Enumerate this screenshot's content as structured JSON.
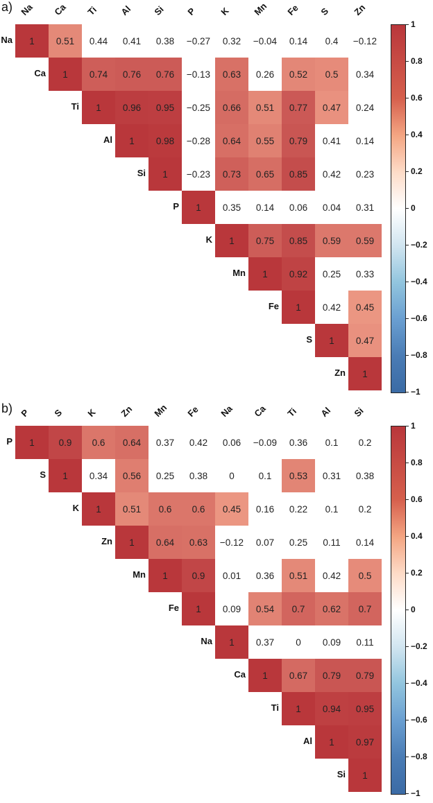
{
  "chart_data": [
    {
      "type": "heatmap",
      "title": "a)",
      "subtype": "upper-triangular correlation matrix",
      "variables": [
        "Na",
        "Ca",
        "Ti",
        "Al",
        "Si",
        "P",
        "K",
        "Mn",
        "Fe",
        "S",
        "Zn"
      ],
      "matrix": [
        [
          1,
          0.51,
          0.44,
          0.41,
          0.38,
          -0.27,
          0.32,
          -0.04,
          0.14,
          0.4,
          -0.12
        ],
        [
          null,
          1,
          0.74,
          0.76,
          0.76,
          -0.13,
          0.63,
          0.26,
          0.52,
          0.5,
          0.34
        ],
        [
          null,
          null,
          1,
          0.96,
          0.95,
          -0.25,
          0.66,
          0.51,
          0.77,
          0.47,
          0.24
        ],
        [
          null,
          null,
          null,
          1,
          0.98,
          -0.28,
          0.64,
          0.55,
          0.79,
          0.41,
          0.14
        ],
        [
          null,
          null,
          null,
          null,
          1,
          -0.23,
          0.73,
          0.65,
          0.85,
          0.42,
          0.23
        ],
        [
          null,
          null,
          null,
          null,
          null,
          1,
          0.35,
          0.14,
          0.06,
          0.04,
          0.31
        ],
        [
          null,
          null,
          null,
          null,
          null,
          null,
          1,
          0.75,
          0.85,
          0.59,
          0.59
        ],
        [
          null,
          null,
          null,
          null,
          null,
          null,
          null,
          1,
          0.92,
          0.25,
          0.33
        ],
        [
          null,
          null,
          null,
          null,
          null,
          null,
          null,
          null,
          1,
          0.42,
          0.45
        ],
        [
          null,
          null,
          null,
          null,
          null,
          null,
          null,
          null,
          null,
          1,
          0.47
        ],
        [
          null,
          null,
          null,
          null,
          null,
          null,
          null,
          null,
          null,
          null,
          1
        ]
      ],
      "colored_mask": [
        [
          1,
          1,
          0,
          0,
          0,
          0,
          0,
          0,
          0,
          0,
          0
        ],
        [
          0,
          1,
          1,
          1,
          1,
          0,
          1,
          0,
          1,
          1,
          0
        ],
        [
          0,
          0,
          1,
          1,
          1,
          0,
          1,
          1,
          1,
          1,
          0
        ],
        [
          0,
          0,
          0,
          1,
          1,
          0,
          1,
          1,
          1,
          0,
          0
        ],
        [
          0,
          0,
          0,
          0,
          1,
          0,
          1,
          1,
          1,
          0,
          0
        ],
        [
          0,
          0,
          0,
          0,
          0,
          1,
          0,
          0,
          0,
          0,
          0
        ],
        [
          0,
          0,
          0,
          0,
          0,
          0,
          1,
          1,
          1,
          1,
          1
        ],
        [
          0,
          0,
          0,
          0,
          0,
          0,
          0,
          1,
          1,
          0,
          0
        ],
        [
          0,
          0,
          0,
          0,
          0,
          0,
          0,
          0,
          1,
          0,
          1
        ],
        [
          0,
          0,
          0,
          0,
          0,
          0,
          0,
          0,
          0,
          1,
          1
        ],
        [
          0,
          0,
          0,
          0,
          0,
          0,
          0,
          0,
          0,
          0,
          1
        ]
      ],
      "colorbar": {
        "min": -1,
        "max": 1,
        "ticks": [
          "1",
          "0.8",
          "0.6",
          "0.4",
          "0.2",
          "0",
          "−0.2",
          "−0.4",
          "−0.6",
          "−0.8",
          "−1"
        ],
        "low_color": "#3b6ba5",
        "mid_color": "#ffffff",
        "high_color": "#b9373b"
      }
    },
    {
      "type": "heatmap",
      "title": "b)",
      "subtype": "upper-triangular correlation matrix",
      "variables": [
        "P",
        "S",
        "K",
        "Zn",
        "Mn",
        "Fe",
        "Na",
        "Ca",
        "Ti",
        "Al",
        "Si"
      ],
      "matrix": [
        [
          1,
          0.9,
          0.6,
          0.64,
          0.37,
          0.42,
          0.06,
          -0.09,
          0.36,
          0.1,
          0.2
        ],
        [
          null,
          1,
          0.34,
          0.56,
          0.25,
          0.38,
          0,
          0.1,
          0.53,
          0.31,
          0.38
        ],
        [
          null,
          null,
          1,
          0.51,
          0.6,
          0.6,
          0.45,
          0.16,
          0.22,
          0.1,
          0.2
        ],
        [
          null,
          null,
          null,
          1,
          0.64,
          0.63,
          -0.12,
          0.07,
          0.25,
          0.11,
          0.14
        ],
        [
          null,
          null,
          null,
          null,
          1,
          0.9,
          0.01,
          0.36,
          0.51,
          0.42,
          0.5
        ],
        [
          null,
          null,
          null,
          null,
          null,
          1,
          0.09,
          0.54,
          0.7,
          0.62,
          0.7
        ],
        [
          null,
          null,
          null,
          null,
          null,
          null,
          1,
          0.37,
          0,
          0.09,
          0.11
        ],
        [
          null,
          null,
          null,
          null,
          null,
          null,
          null,
          1,
          0.67,
          0.79,
          0.79
        ],
        [
          null,
          null,
          null,
          null,
          null,
          null,
          null,
          null,
          1,
          0.94,
          0.95
        ],
        [
          null,
          null,
          null,
          null,
          null,
          null,
          null,
          null,
          null,
          1,
          0.97
        ],
        [
          null,
          null,
          null,
          null,
          null,
          null,
          null,
          null,
          null,
          null,
          1
        ]
      ],
      "colored_mask": [
        [
          1,
          1,
          1,
          1,
          0,
          0,
          0,
          0,
          0,
          0,
          0
        ],
        [
          0,
          1,
          0,
          1,
          0,
          0,
          0,
          0,
          1,
          0,
          0
        ],
        [
          0,
          0,
          1,
          1,
          1,
          1,
          1,
          0,
          0,
          0,
          0
        ],
        [
          0,
          0,
          0,
          1,
          1,
          1,
          0,
          0,
          0,
          0,
          0
        ],
        [
          0,
          0,
          0,
          0,
          1,
          1,
          0,
          0,
          1,
          0,
          1
        ],
        [
          0,
          0,
          0,
          0,
          0,
          1,
          0,
          1,
          1,
          1,
          1
        ],
        [
          0,
          0,
          0,
          0,
          0,
          0,
          1,
          0,
          0,
          0,
          0
        ],
        [
          0,
          0,
          0,
          0,
          0,
          0,
          0,
          1,
          1,
          1,
          1
        ],
        [
          0,
          0,
          0,
          0,
          0,
          0,
          0,
          0,
          1,
          1,
          1
        ],
        [
          0,
          0,
          0,
          0,
          0,
          0,
          0,
          0,
          0,
          1,
          1
        ],
        [
          0,
          0,
          0,
          0,
          0,
          0,
          0,
          0,
          0,
          0,
          1
        ]
      ],
      "colorbar": {
        "min": -1,
        "max": 1,
        "ticks": [
          "1",
          "0.8",
          "0.6",
          "0.4",
          "0.2",
          "0",
          "−0.2",
          "−0.4",
          "−0.6",
          "−0.8",
          "−1"
        ],
        "low_color": "#3b6ba5",
        "mid_color": "#ffffff",
        "high_color": "#b9373b"
      }
    }
  ]
}
